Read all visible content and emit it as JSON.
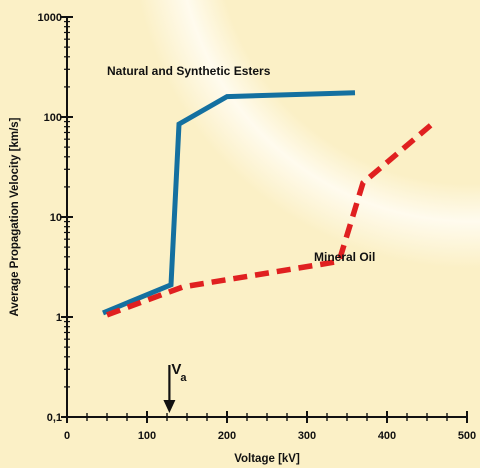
{
  "chart_data": {
    "type": "line",
    "xlabel": "Voltage [kV]",
    "ylabel": "Average Propagation Velocity [km/s]",
    "xlim": [
      0,
      500
    ],
    "ylim": [
      0.1,
      1000
    ],
    "y_scale": "log",
    "grid": false,
    "x_ticks": [
      "0",
      "100",
      "200",
      "300",
      "400",
      "500"
    ],
    "y_ticks": [
      "0,1",
      "1",
      "10",
      "100",
      "1000"
    ],
    "series": [
      {
        "name": "Natural and Synthetic Esters",
        "color": "#1470a0",
        "style": "solid",
        "x": [
          45,
          130,
          140,
          200,
          360
        ],
        "y": [
          1.1,
          2.1,
          85,
          160,
          175
        ]
      },
      {
        "name": "Mineral Oil",
        "color": "#e02020",
        "style": "dashed",
        "x": [
          50,
          145,
          340,
          370,
          460
        ],
        "y": [
          1.05,
          2.0,
          3.6,
          22,
          90
        ]
      }
    ],
    "annotations": [
      {
        "text": "Natural and Synthetic Esters",
        "x": 170,
        "y": 290
      },
      {
        "text": "Mineral Oil",
        "x": 355,
        "y": 4
      },
      {
        "text": "V",
        "subscript": "a",
        "x": 128,
        "y": 0.17,
        "arrow": "down"
      }
    ]
  }
}
